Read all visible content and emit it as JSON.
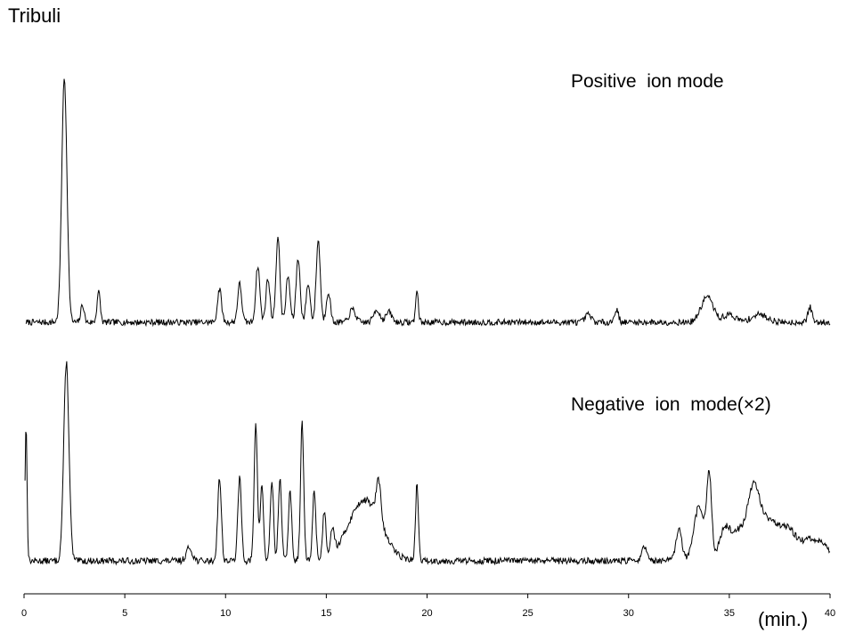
{
  "title": "Tribuli",
  "chart_data": {
    "type": "line",
    "title": "Tribuli",
    "xlabel": "(min.)",
    "ylabel": "",
    "xlim": [
      0,
      40
    ],
    "xticks": [
      0,
      5,
      10,
      15,
      20,
      25,
      30,
      35,
      40
    ],
    "grid": false,
    "series": [
      {
        "name": "Positive  ion mode",
        "peaks": [
          [
            2.0,
            0.95,
            0.13
          ],
          [
            2.9,
            0.07,
            0.08
          ],
          [
            3.7,
            0.12,
            0.08
          ],
          [
            9.7,
            0.13,
            0.1
          ],
          [
            10.7,
            0.15,
            0.1
          ],
          [
            11.6,
            0.22,
            0.1
          ],
          [
            12.1,
            0.17,
            0.1
          ],
          [
            12.6,
            0.33,
            0.1
          ],
          [
            13.1,
            0.18,
            0.1
          ],
          [
            13.6,
            0.25,
            0.1
          ],
          [
            14.1,
            0.15,
            0.1
          ],
          [
            14.6,
            0.32,
            0.1
          ],
          [
            15.1,
            0.12,
            0.1
          ],
          [
            16.3,
            0.05,
            0.15
          ],
          [
            17.5,
            0.05,
            0.15
          ],
          [
            18.1,
            0.04,
            0.15
          ],
          [
            19.5,
            0.12,
            0.07
          ],
          [
            28.0,
            0.03,
            0.15
          ],
          [
            29.4,
            0.05,
            0.1
          ],
          [
            33.9,
            0.1,
            0.3
          ],
          [
            35.0,
            0.03,
            0.3
          ],
          [
            36.5,
            0.03,
            0.4
          ],
          [
            39.0,
            0.06,
            0.1
          ]
        ],
        "noise": 0.012
      },
      {
        "name": "Negative  ion  mode(×2)",
        "peaks": [
          [
            0.1,
            0.62,
            0.05
          ],
          [
            2.1,
            0.91,
            0.13
          ],
          [
            8.2,
            0.06,
            0.15
          ],
          [
            9.7,
            0.38,
            0.09
          ],
          [
            10.7,
            0.38,
            0.09
          ],
          [
            11.5,
            0.63,
            0.08
          ],
          [
            11.8,
            0.35,
            0.08
          ],
          [
            12.3,
            0.37,
            0.08
          ],
          [
            12.7,
            0.38,
            0.08
          ],
          [
            13.2,
            0.32,
            0.08
          ],
          [
            13.8,
            0.63,
            0.08
          ],
          [
            14.4,
            0.32,
            0.08
          ],
          [
            14.9,
            0.22,
            0.08
          ],
          [
            15.3,
            0.12,
            0.1
          ],
          [
            16.9,
            0.28,
            0.8
          ],
          [
            17.6,
            0.18,
            0.12
          ],
          [
            19.5,
            0.35,
            0.07
          ],
          [
            30.8,
            0.06,
            0.15
          ],
          [
            32.5,
            0.14,
            0.15
          ],
          [
            33.5,
            0.25,
            0.25
          ],
          [
            34.0,
            0.38,
            0.12
          ],
          [
            34.8,
            0.15,
            0.3
          ],
          [
            35.5,
            0.12,
            0.3
          ],
          [
            36.2,
            0.3,
            0.3
          ],
          [
            37.0,
            0.18,
            0.5
          ],
          [
            38.0,
            0.12,
            0.4
          ],
          [
            39.0,
            0.09,
            0.4
          ],
          [
            39.7,
            0.06,
            0.3
          ]
        ],
        "noise": 0.015
      }
    ]
  }
}
